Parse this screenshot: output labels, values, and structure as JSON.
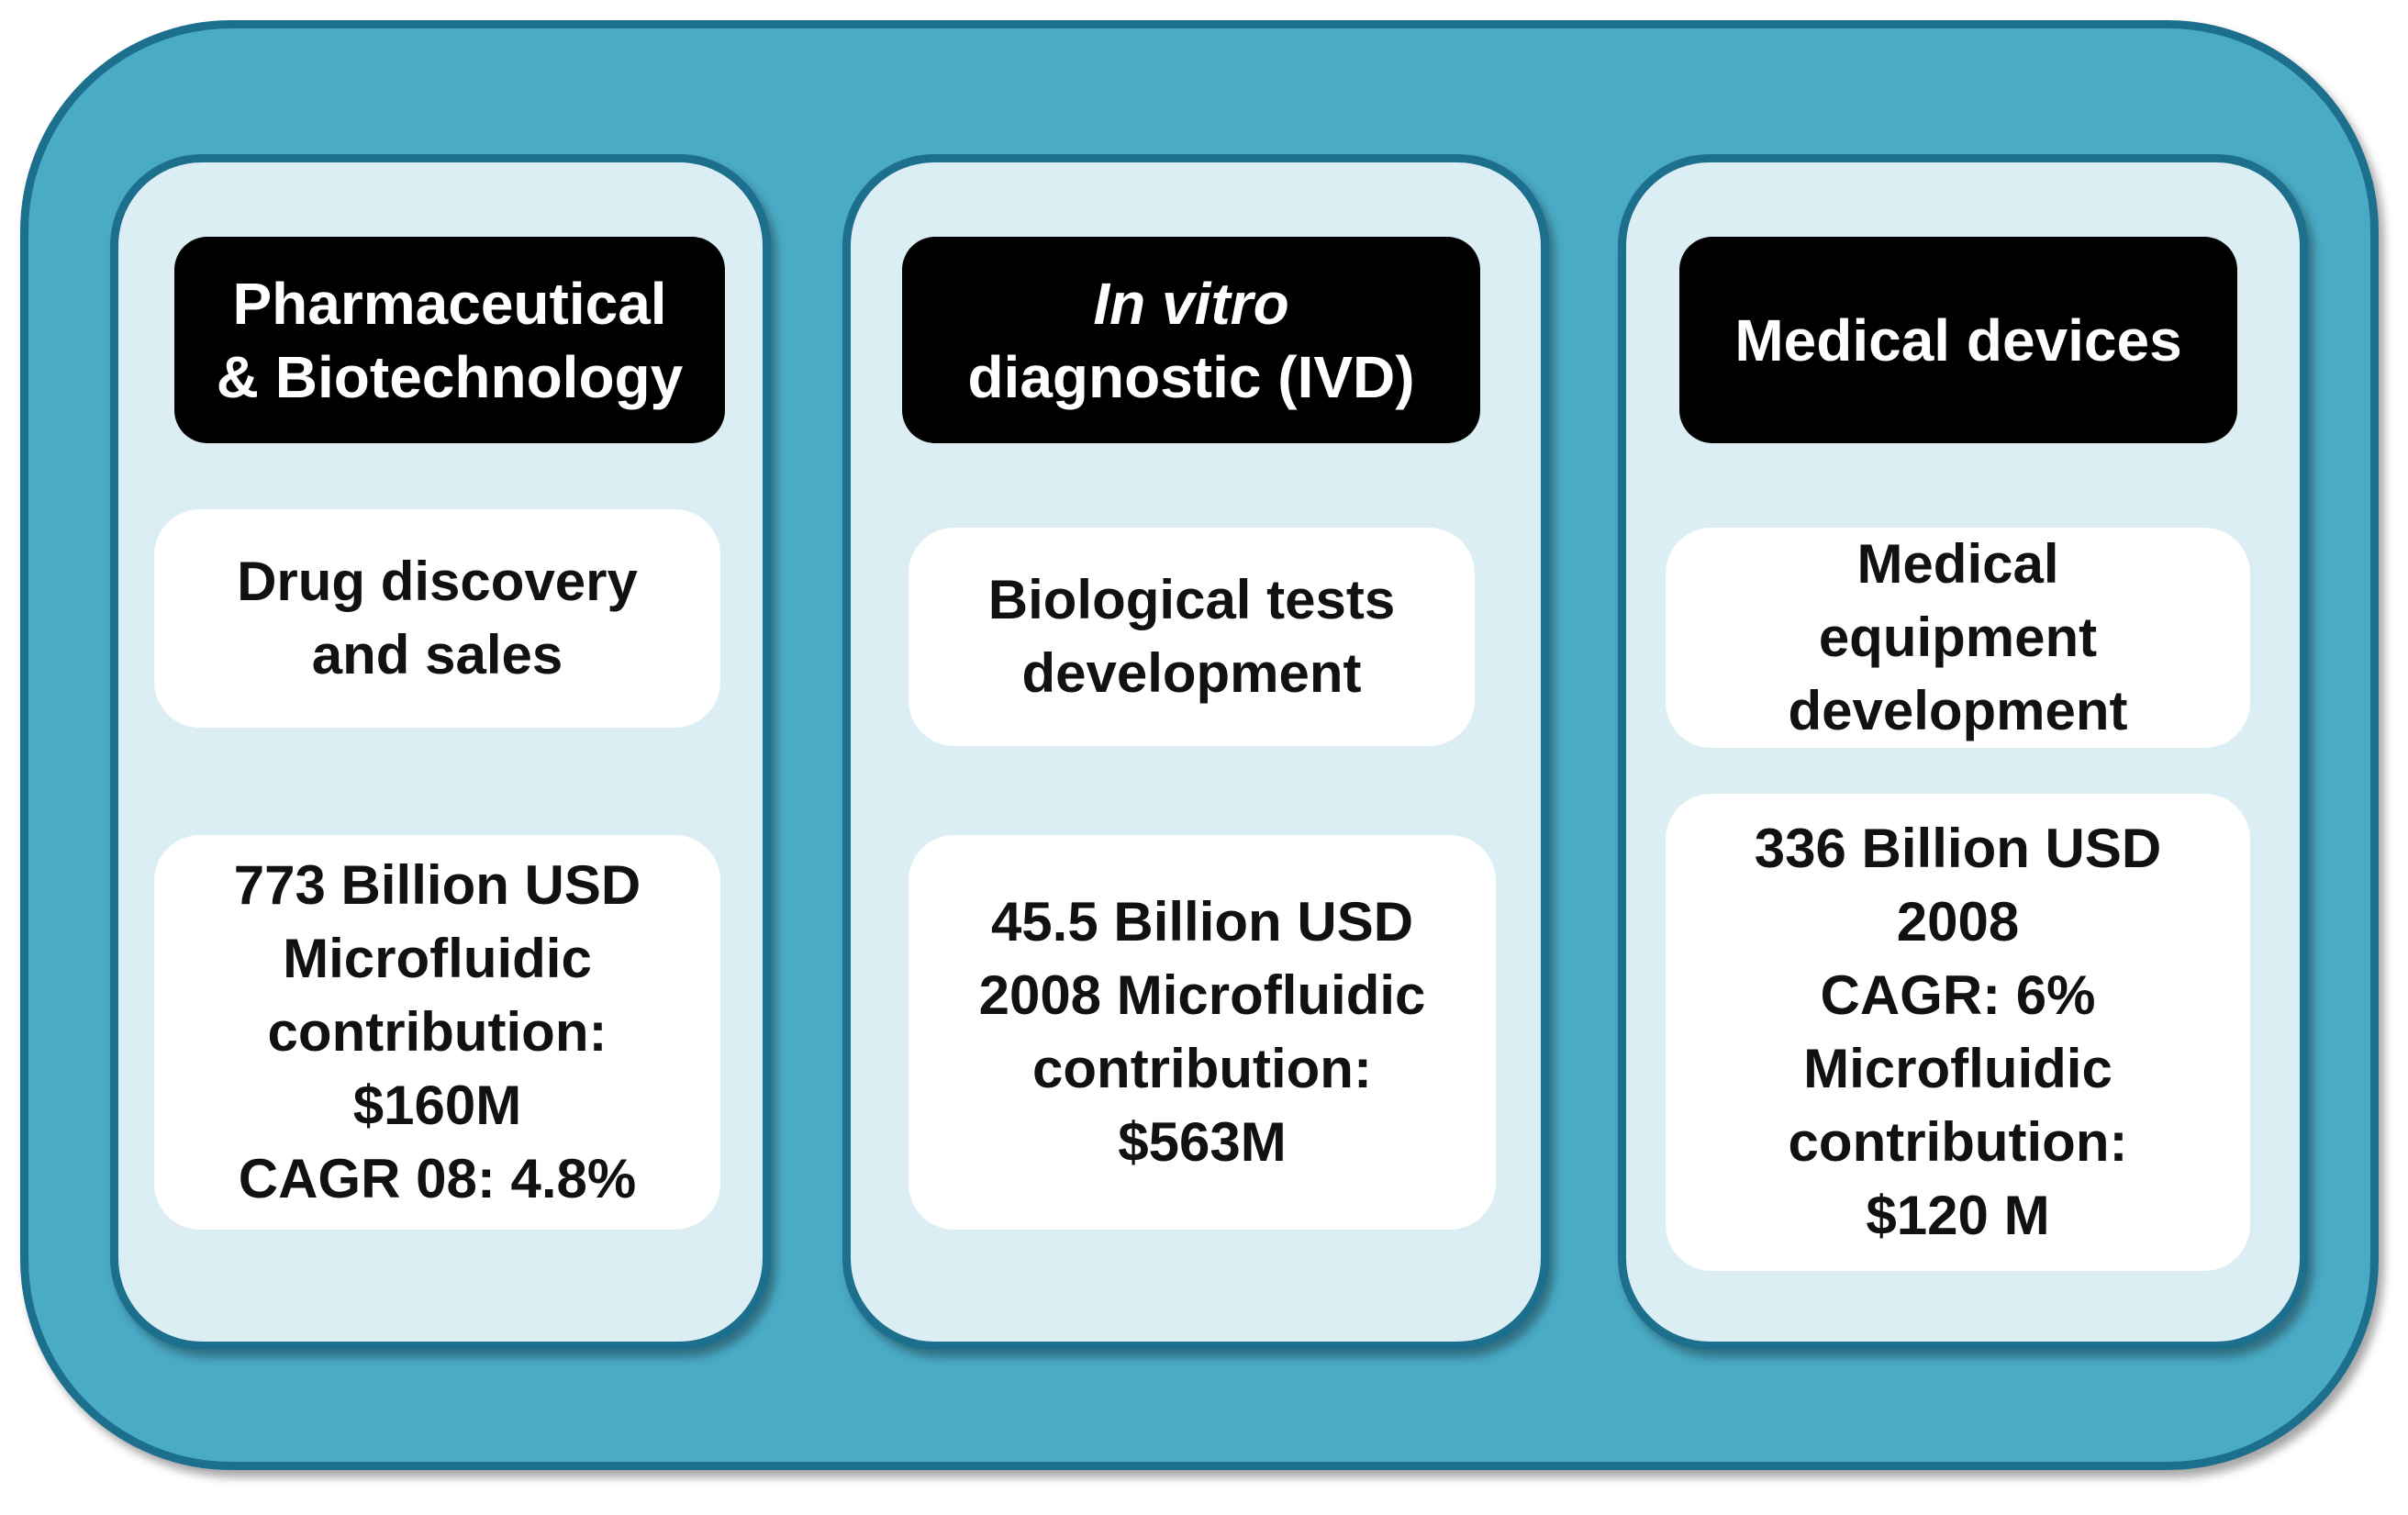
{
  "columns": [
    {
      "header": "Pharmaceutical\n& Biotechnology",
      "activity": "Drug discovery\nand sales",
      "market": "773 Billion USD\nMicrofluidic\ncontribution:\n$160M\nCAGR 08: 4.8%"
    },
    {
      "header_italic": "In vitro",
      "header_rest": "diagnostic (IVD)",
      "activity": "Biological tests\ndevelopment",
      "market": "45.5 Billion USD\n2008 Microfluidic\ncontribution:\n$563M"
    },
    {
      "header": "Medical devices",
      "activity": "Medical\nequipment\ndevelopment",
      "market": "336 Billion USD\n2008\nCAGR: 6%\nMicrofluidic\ncontribution:\n$120 M"
    }
  ],
  "colors": {
    "outer_fill": "#4aabc6",
    "outer_border": "#1d6f8e",
    "column_fill": "#dbeef4",
    "header_fill": "#000000",
    "header_text": "#ffffff",
    "card_fill": "#ffffff"
  }
}
